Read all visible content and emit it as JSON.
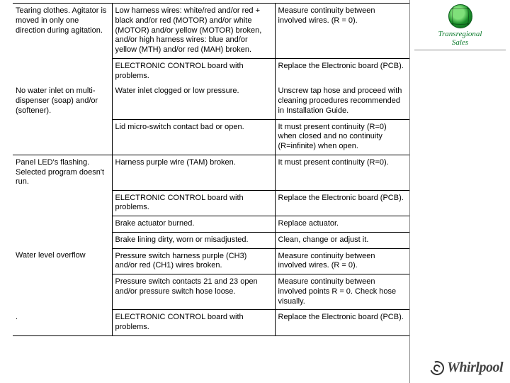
{
  "sidebar": {
    "line1": "Transregional",
    "line2": "Sales"
  },
  "brand": "Whirlpool",
  "rows": [
    {
      "symptom": "Tearing clothes.\nAgitator is moved in only one direction during agitation.",
      "cause": "Low harness wires: white/red and/or red + black and/or red (MOTOR) and/or white (MOTOR) and/or yellow (MOTOR) broken, and/or high harness wires: blue and/or yellow (MTH) and/or red (MAH) broken.",
      "action": "Measure continuity between involved wires. (R = 0).",
      "symptom_rowspan": 1
    },
    {
      "cause": "ELECTRONIC CONTROL board with problems.",
      "action": "Replace the Electronic board (PCB)."
    },
    {
      "symptom": "No water inlet on multi-dispenser (soap) and/or (softener).",
      "cause": "Water inlet clogged or low pressure.",
      "action": "Unscrew tap hose and proceed with cleaning procedures recommended in Installation Guide."
    },
    {
      "symptom": "",
      "cause": "Lid micro-switch contact bad or open.",
      "action": "It must present continuity (R=0) when closed and no continuity (R=infinite) when open."
    },
    {
      "symptom": "Panel LED's flashing.\nSelected program doesn't run.",
      "cause": "Harness purple wire (TAM) broken.",
      "action": "It must present continuity (R=0)."
    },
    {
      "symptom": "",
      "cause": "ELECTRONIC CONTROL board with problems.",
      "action": "Replace the Electronic board (PCB)."
    },
    {
      "symptom": "",
      "cause": "Brake actuator burned.",
      "action": "Replace actuator."
    },
    {
      "symptom": "",
      "cause": "Brake lining dirty, worn or misadjusted.",
      "action": "Clean, change or adjust it."
    },
    {
      "symptom": "Water level overflow",
      "cause": "Pressure switch harness purple (CH3) and/or red (CH1) wires broken.",
      "action": "Measure continuity between involved wires. (R = 0)."
    },
    {
      "symptom": "",
      "cause": "Pressure switch contacts 21 and 23 open and/or pressure switch hose loose.",
      "action": "Measure continuity between involved points\nR = 0. Check hose visually."
    },
    {
      "symptom": ".",
      "cause": "ELECTRONIC CONTROL board with problems.",
      "action": "Replace the Electronic board (PCB)."
    }
  ]
}
